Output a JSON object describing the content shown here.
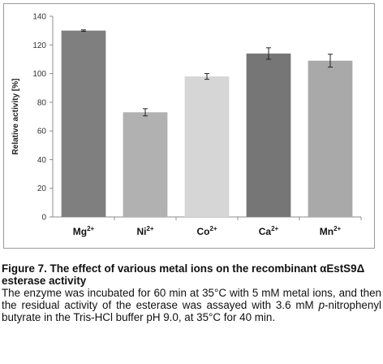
{
  "chart_data": {
    "type": "bar",
    "categories": [
      {
        "base": "Mg",
        "sup": "2+"
      },
      {
        "base": "Ni",
        "sup": "2+"
      },
      {
        "base": "Co",
        "sup": "2+"
      },
      {
        "base": "Ca",
        "sup": "2+"
      },
      {
        "base": "Mn",
        "sup": "2+"
      }
    ],
    "values": [
      130,
      73,
      98,
      114,
      109
    ],
    "errors": [
      0.5,
      2.5,
      2,
      4,
      4.5
    ],
    "colors": [
      "#7f7f7f",
      "#b1b1b1",
      "#d6d6d6",
      "#767676",
      "#a9a9a9"
    ],
    "ylabel": "Relative activity  [%]",
    "ylim": [
      0,
      140
    ],
    "yticks": [
      0,
      20,
      40,
      60,
      80,
      100,
      120,
      140
    ],
    "grid": false,
    "legend": "none"
  },
  "caption": {
    "title": "Figure 7. The effect of various metal ions on the recombinant αEstS9Δ esterase activity",
    "text_before_italic": "The enzyme was incubated for 60 min at 35°C with 5 mM metal ions, and then the residual activity of the esterase was assayed with 3.6 mM ",
    "text_italic": "p",
    "text_after_italic": "-nitrophenyl butyrate in the Tris-HCl buffer pH 9.0, at 35°C for 40 min."
  }
}
